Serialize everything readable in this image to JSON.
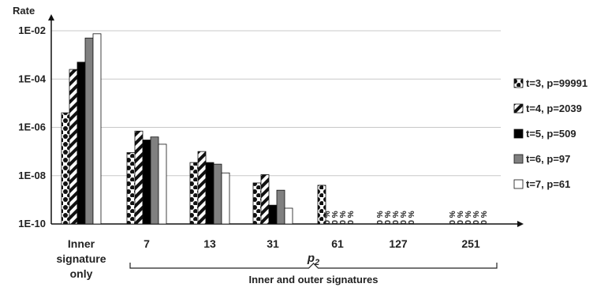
{
  "chart_data": {
    "type": "bar",
    "y_axis_title": "Rate",
    "y_scale": "log10",
    "ylim": [
      1e-10,
      0.01
    ],
    "y_tick_labels": [
      "1E-02",
      "1E-04",
      "1E-06",
      "1E-08",
      "1E-10"
    ],
    "grid": "horizontal",
    "legend_position": "right",
    "categories": [
      "Inner\nsignature\nonly",
      "7",
      "13",
      "31",
      "61",
      "127",
      "251"
    ],
    "x_axis_group_label": "p2",
    "x_axis_group_caption": "Inner and outer signatures",
    "zero_label": "0 %",
    "series": [
      {
        "name": "t=3, p=99991",
        "pattern": "dots",
        "values": [
          4e-06,
          9e-08,
          3.5e-08,
          5e-09,
          4e-09,
          0,
          0
        ]
      },
      {
        "name": "t=4, p=2039",
        "pattern": "stripes",
        "values": [
          0.00025,
          7e-07,
          1e-07,
          1.1e-08,
          0,
          0,
          0
        ]
      },
      {
        "name": "t=5, p=509",
        "pattern": "black",
        "values": [
          0.0005,
          3e-07,
          3.5e-08,
          6e-10,
          0,
          0,
          0
        ]
      },
      {
        "name": "t=6, p=97",
        "pattern": "gray",
        "values": [
          0.005,
          4e-07,
          3e-08,
          2.5e-09,
          0,
          0,
          0
        ]
      },
      {
        "name": "t=7, p=61",
        "pattern": "white",
        "values": [
          0.0075,
          2e-07,
          1.3e-08,
          4.5e-10,
          0,
          0,
          0
        ]
      }
    ]
  }
}
